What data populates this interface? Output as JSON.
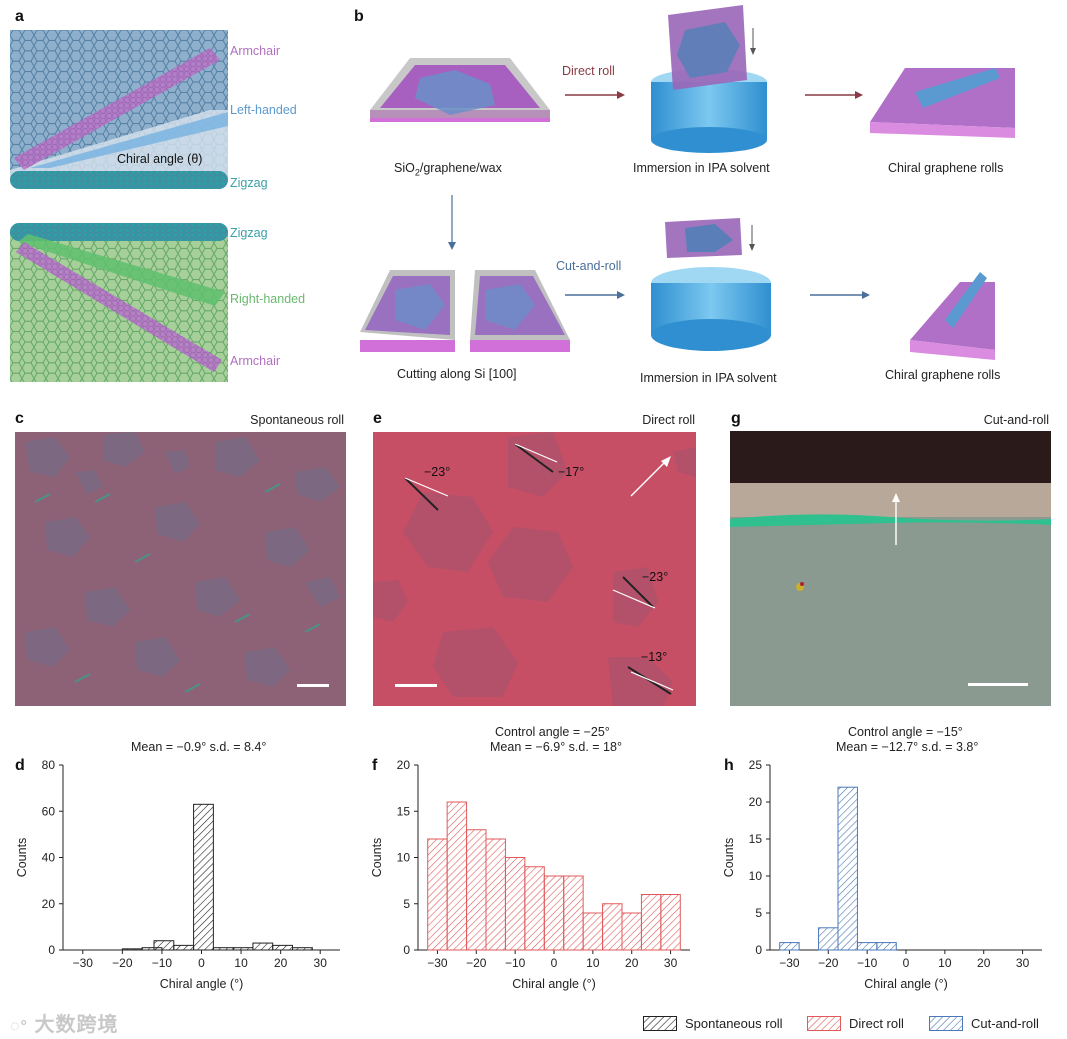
{
  "panels": {
    "a": {
      "label": "a",
      "armchair_top": "Armchair",
      "left_handed": "Left-handed",
      "chiral_angle": "Chiral angle (θ)",
      "zigzag_top": "Zigzag",
      "zigzag_bottom": "Zigzag",
      "right_handed": "Right-handed",
      "armchair_bottom": "Armchair"
    },
    "b": {
      "label": "b",
      "direct_roll": "Direct roll",
      "cut_and_roll": "Cut-and-roll",
      "sio2_prefix": "SiO",
      "sio2_sub": "2",
      "sio2_suffix": "/graphene/wax",
      "immersion_top": "Immersion in IPA solvent",
      "chiral_rolls_top": "Chiral graphene rolls",
      "cutting": "Cutting along Si [100]",
      "immersion_bottom": "Immersion in IPA solvent",
      "chiral_rolls_bottom": "Chiral graphene rolls"
    },
    "c": {
      "label": "c",
      "title": "Spontaneous roll"
    },
    "e": {
      "label": "e",
      "title": "Direct roll",
      "angles": [
        "−23°",
        "−17°",
        "−23°",
        "−13°"
      ]
    },
    "g": {
      "label": "g",
      "title": "Cut-and-roll"
    },
    "d": {
      "label": "d",
      "stats": "Mean = −0.9° s.d. = 8.4°"
    },
    "f": {
      "label": "f",
      "control": "Control angle = −25°",
      "stats": "Mean = −6.9° s.d. = 18°"
    },
    "h": {
      "label": "h",
      "control": "Control angle = −15°",
      "stats": "Mean = −12.7° s.d. = 3.8°"
    }
  },
  "legend": {
    "spontaneous": "Spontaneous roll",
    "direct": "Direct roll",
    "cut": "Cut-and-roll"
  },
  "watermark": "大数跨境",
  "colors": {
    "spontaneous": "#222222",
    "direct": "#e05a5a",
    "cut": "#4a78b8",
    "armchair": "#b070c0",
    "left_handed": "#5a9ad0",
    "zigzag": "#3aa0a8",
    "right_handed": "#6ab870"
  },
  "chart_data": [
    {
      "id": "d",
      "type": "bar",
      "xlabel": "Chiral angle (°)",
      "ylabel": "Counts",
      "xlim": [
        -35,
        35
      ],
      "ylim": [
        0,
        80
      ],
      "xticks": [
        -30,
        -20,
        -10,
        0,
        10,
        20,
        30
      ],
      "yticks": [
        0,
        20,
        40,
        60,
        80
      ],
      "bin_width": 5,
      "series": [
        {
          "bins": [
            {
              "x0": -20,
              "v": 0.5
            },
            {
              "x0": -15,
              "v": 1
            },
            {
              "x0": -12,
              "v": 4
            },
            {
              "x0": -7,
              "v": 2
            },
            {
              "x0": -2,
              "v": 63
            },
            {
              "x0": 3,
              "v": 1
            },
            {
              "x0": 8,
              "v": 1
            },
            {
              "x0": 13,
              "v": 3
            },
            {
              "x0": 18,
              "v": 2
            },
            {
              "x0": 23,
              "v": 1
            }
          ]
        }
      ]
    },
    {
      "id": "f",
      "type": "bar",
      "xlabel": "Chiral angle (°)",
      "ylabel": "Counts",
      "xlim": [
        -35,
        35
      ],
      "ylim": [
        0,
        20
      ],
      "xticks": [
        -30,
        -20,
        -10,
        0,
        10,
        20,
        30
      ],
      "yticks": [
        0,
        5,
        10,
        15,
        20
      ],
      "bin_width": 5,
      "series": [
        {
          "bins": [
            {
              "x0": -32.5,
              "v": 12
            },
            {
              "x0": -27.5,
              "v": 16
            },
            {
              "x0": -22.5,
              "v": 13
            },
            {
              "x0": -17.5,
              "v": 12
            },
            {
              "x0": -12.5,
              "v": 10
            },
            {
              "x0": -7.5,
              "v": 9
            },
            {
              "x0": -2.5,
              "v": 8
            },
            {
              "x0": 2.5,
              "v": 8
            },
            {
              "x0": 7.5,
              "v": 4
            },
            {
              "x0": 12.5,
              "v": 5
            },
            {
              "x0": 17.5,
              "v": 4
            },
            {
              "x0": 22.5,
              "v": 6
            },
            {
              "x0": 27.5,
              "v": 6
            }
          ]
        }
      ]
    },
    {
      "id": "h",
      "type": "bar",
      "xlabel": "Chiral angle (°)",
      "ylabel": "Counts",
      "xlim": [
        -35,
        35
      ],
      "ylim": [
        0,
        25
      ],
      "xticks": [
        -30,
        -20,
        -10,
        0,
        10,
        20,
        30
      ],
      "yticks": [
        0,
        5,
        10,
        15,
        20,
        25
      ],
      "bin_width": 5,
      "series": [
        {
          "bins": [
            {
              "x0": -32.5,
              "v": 1
            },
            {
              "x0": -22.5,
              "v": 3
            },
            {
              "x0": -17.5,
              "v": 22
            },
            {
              "x0": -12.5,
              "v": 1
            },
            {
              "x0": -7.5,
              "v": 1
            }
          ]
        }
      ]
    }
  ]
}
